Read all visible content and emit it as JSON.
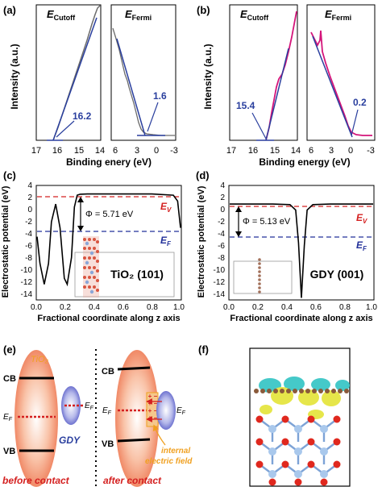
{
  "panels": {
    "a": {
      "tag": "(a)",
      "ylabel": "Intensity (a.u.)",
      "xlabel": "Binding enery (eV)",
      "cutoff_title": "Cutoff",
      "fermi_title": "Fermi",
      "e_symbol": "E",
      "cutoff_value": "16.2",
      "fermi_value": "1.6",
      "ticks_left": [
        "17",
        "16",
        "15",
        "14"
      ],
      "ticks_right": [
        "6",
        "3",
        "0",
        "-3"
      ]
    },
    "b": {
      "tag": "(b)",
      "ylabel": "Intensity (a.u.)",
      "xlabel": "Binding energy (eV)",
      "cutoff_title": "Cutoff",
      "fermi_title": "Fermi",
      "e_symbol": "E",
      "cutoff_value": "15.4",
      "fermi_value": "0.2",
      "ticks_left": [
        "17",
        "16",
        "15",
        "14"
      ],
      "ticks_right": [
        "6",
        "3",
        "0",
        "-3"
      ]
    },
    "c": {
      "tag": "(c)",
      "ylabel": "Electrostatic potential (eV)",
      "xlabel": "Fractional coordinate along z axis",
      "phi_label": "Φ = 5.71 eV",
      "ev_label": "E",
      "ev_sub": "V",
      "ef_label": "E",
      "ef_sub": "F",
      "box_label": "TiO₂ (101)",
      "yticks": [
        "4",
        "2",
        "0",
        "-2",
        "-4",
        "-6",
        "-8",
        "-10",
        "-12",
        "-14"
      ],
      "xticks": [
        "0.0",
        "0.2",
        "0.4",
        "0.6",
        "0.8",
        "1.0"
      ]
    },
    "d": {
      "tag": "(d)",
      "ylabel": "Electrostatic potential (eV)",
      "xlabel": "Fractional coordinate along z axis",
      "phi_label": "Φ = 5.13 eV",
      "ev_label": "E",
      "ev_sub": "V",
      "ef_label": "E",
      "ef_sub": "F",
      "box_label": "GDY (001)",
      "yticks": [
        "4",
        "2",
        "0",
        "-2",
        "-4",
        "-6",
        "-8",
        "-10",
        "-12",
        "-14"
      ],
      "xticks": [
        "0.0",
        "0.2",
        "0.4",
        "0.6",
        "0.8",
        "1.0"
      ]
    },
    "e": {
      "tag": "(e)",
      "tio2": "TiO₂",
      "gdy": "GDY",
      "cb": "CB",
      "vb": "VB",
      "ef": "E",
      "ef_sub": "F",
      "before": "before contact",
      "after": "after contact",
      "field_line1": "internal",
      "field_line2": "electric field"
    },
    "f": {
      "tag": "(f)"
    }
  },
  "colors": {
    "blue": "#2a3f9e",
    "red": "#d42020",
    "magenta": "#d4147a",
    "gray": "#6b6b6b",
    "dash_blue": "#23319a",
    "orange": "#f0a020"
  },
  "chart_data": [
    {
      "panel": "a",
      "type": "line",
      "title": "",
      "xlabel": "Binding enery (eV)",
      "ylabel": "Intensity (a.u.)",
      "subplots": [
        {
          "name": "E_Cutoff",
          "xlim": [
            17,
            14
          ],
          "x": [
            16.2,
            15.8,
            15.4,
            15.0,
            14.6,
            14.3,
            14.2,
            14.0
          ],
          "y": [
            0.0,
            0.22,
            0.45,
            0.66,
            0.85,
            0.96,
            0.98,
            1.0
          ],
          "onset": 16.2
        },
        {
          "name": "E_Fermi",
          "xlim": [
            6,
            -3
          ],
          "x": [
            6.0,
            5.0,
            4.0,
            3.0,
            2.0,
            1.6,
            1.0,
            0.0,
            -1.0,
            -3.0
          ],
          "y": [
            0.98,
            0.82,
            0.64,
            0.42,
            0.18,
            0.07,
            0.05,
            0.04,
            0.03,
            0.03
          ],
          "onset": 1.6
        }
      ]
    },
    {
      "panel": "b",
      "type": "line",
      "title": "",
      "xlabel": "Binding energy (eV)",
      "ylabel": "Intensity (a.u.)",
      "subplots": [
        {
          "name": "E_Cutoff",
          "xlim": [
            17,
            14
          ],
          "x": [
            15.4,
            15.2,
            15.0,
            14.8,
            14.6,
            14.4,
            14.2,
            14.0
          ],
          "y": [
            0.0,
            0.18,
            0.42,
            0.52,
            0.68,
            0.82,
            0.93,
            1.0
          ],
          "onset": 15.4
        },
        {
          "name": "E_Fermi",
          "xlim": [
            6,
            -3
          ],
          "x": [
            6.0,
            5.0,
            4.0,
            3.0,
            2.0,
            1.0,
            0.2,
            -1.0,
            -3.0
          ],
          "y": [
            1.0,
            0.9,
            0.75,
            0.58,
            0.4,
            0.2,
            0.05,
            0.03,
            0.02
          ],
          "onset": 0.2
        }
      ]
    },
    {
      "panel": "c",
      "type": "line",
      "title": "",
      "xlabel": "Fractional coordinate along z axis",
      "ylabel": "Electrostatic potential (eV)",
      "xlim": [
        0,
        1
      ],
      "ylim": [
        -15,
        4
      ],
      "x": [
        0.0,
        0.02,
        0.05,
        0.08,
        0.1,
        0.13,
        0.16,
        0.19,
        0.21,
        0.24,
        0.26,
        0.28,
        0.3,
        0.35,
        0.5,
        0.8,
        0.95,
        0.98,
        1.0
      ],
      "y": [
        -4.5,
        -9,
        -12.5,
        -9,
        -2,
        1,
        -3,
        -11.5,
        -12.5,
        -8,
        0.5,
        2.5,
        2.65,
        2.7,
        2.7,
        2.7,
        2.5,
        1.5,
        -3
      ],
      "levels": {
        "E_V": 2.6,
        "E_F": -3.1
      },
      "work_function": 5.71
    },
    {
      "panel": "d",
      "type": "line",
      "title": "",
      "xlabel": "Fractional coordinate along z axis",
      "ylabel": "Electrostatic potential (eV)",
      "xlim": [
        0,
        1
      ],
      "ylim": [
        -15,
        4
      ],
      "x": [
        0.0,
        0.3,
        0.42,
        0.46,
        0.48,
        0.5,
        0.52,
        0.54,
        0.58,
        0.7,
        1.0
      ],
      "y": [
        1.0,
        1.0,
        0.9,
        0.0,
        -5.5,
        -14.8,
        -6,
        0.0,
        0.9,
        1.0,
        1.0
      ],
      "levels": {
        "E_V": 1.0,
        "E_F": -4.13
      },
      "work_function": 5.13
    }
  ]
}
